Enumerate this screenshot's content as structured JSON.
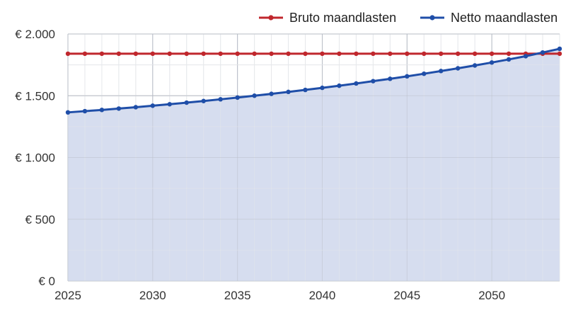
{
  "chart_data": {
    "type": "line",
    "x_start": 2025,
    "x_end": 2054,
    "ylim": [
      0,
      2000
    ],
    "xlim": [
      2025,
      2054
    ],
    "x_ticks": [
      2025,
      2030,
      2035,
      2040,
      2045,
      2050
    ],
    "x_tick_labels": [
      "2025",
      "2030",
      "2035",
      "2040",
      "2045",
      "2050"
    ],
    "y_ticks": [
      0,
      500,
      1000,
      1500,
      2000
    ],
    "y_tick_labels": [
      "€ 0",
      "€ 500",
      "€ 1.000",
      "€ 1.500",
      "€ 2.000"
    ],
    "grid": true,
    "legend_position": "top-right",
    "x": [
      2025,
      2026,
      2027,
      2028,
      2029,
      2030,
      2031,
      2032,
      2033,
      2034,
      2035,
      2036,
      2037,
      2038,
      2039,
      2040,
      2041,
      2042,
      2043,
      2044,
      2045,
      2046,
      2047,
      2048,
      2049,
      2050,
      2051,
      2052,
      2053,
      2054
    ],
    "series": [
      {
        "name": "Bruto maandlasten",
        "color": "#c0272d",
        "values": [
          1840,
          1840,
          1840,
          1840,
          1840,
          1840,
          1840,
          1840,
          1840,
          1840,
          1840,
          1840,
          1840,
          1840,
          1840,
          1840,
          1840,
          1840,
          1840,
          1840,
          1840,
          1840,
          1840,
          1840,
          1840,
          1840,
          1840,
          1840,
          1840,
          1840
        ]
      },
      {
        "name": "Netto maandlasten",
        "color": "#1f4ea8",
        "fill": "#d6ddef",
        "values": [
          1365,
          1375,
          1385,
          1396,
          1407,
          1419,
          1431,
          1444,
          1457,
          1471,
          1485,
          1500,
          1515,
          1531,
          1547,
          1564,
          1581,
          1599,
          1618,
          1637,
          1657,
          1678,
          1700,
          1722,
          1745,
          1769,
          1794,
          1820,
          1850,
          1880
        ]
      }
    ]
  }
}
